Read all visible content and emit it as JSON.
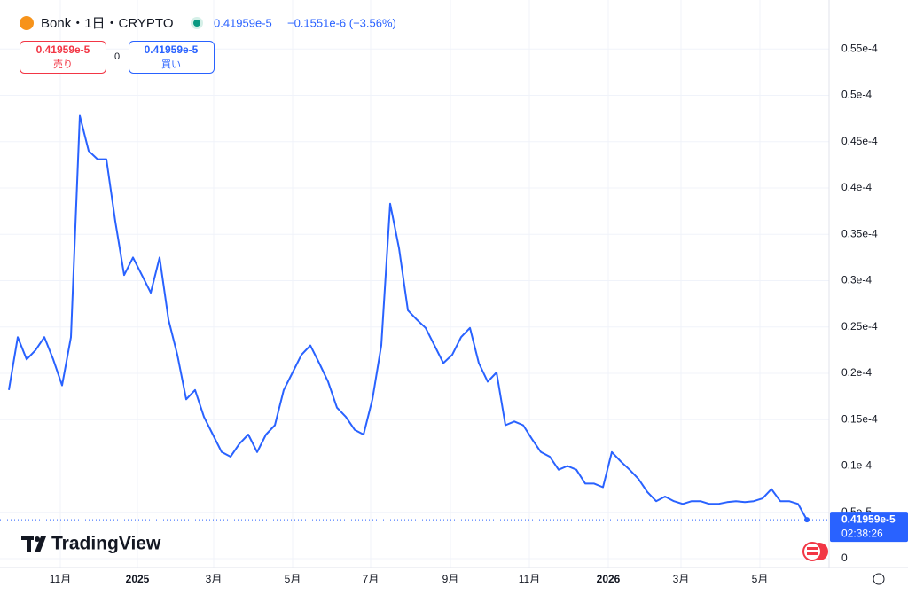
{
  "header": {
    "symbol": "Bonk・1日・CRYPTO",
    "price": "0.41959e-5",
    "change": "−0.1551e-6 (−3.56%)"
  },
  "trade": {
    "sell_price": "0.41959e-5",
    "sell_label": "売り",
    "spread": "0",
    "buy_price": "0.41959e-5",
    "buy_label": "買い"
  },
  "price_label": {
    "value": "0.41959e-5",
    "countdown": "02:38:26"
  },
  "logo": "TradingView",
  "chart_data": {
    "type": "line",
    "xlim": [
      -1,
      92.5
    ],
    "xticks": [
      {
        "value": 5.8,
        "label": "11月"
      },
      {
        "value": 14.5,
        "label": "2025"
      },
      {
        "value": 23.1,
        "label": "3月"
      },
      {
        "value": 32,
        "label": "5月"
      },
      {
        "value": 40.8,
        "label": "7月"
      },
      {
        "value": 49.8,
        "label": "9月"
      },
      {
        "value": 58.7,
        "label": "11月"
      },
      {
        "value": 67.6,
        "label": "2026"
      },
      {
        "value": 75.8,
        "label": "3月"
      },
      {
        "value": 84.7,
        "label": "5月"
      }
    ],
    "ylim": [
      0,
      6e-05
    ],
    "yticks": [
      0,
      {
        "value": 5e-06,
        "label": "0.5e-5"
      },
      {
        "value": 1e-05,
        "label": "0.1e-4"
      },
      {
        "value": 1.5e-05,
        "label": "0.15e-4"
      },
      {
        "value": 2e-05,
        "label": "0.2e-4"
      },
      {
        "value": 2.5e-05,
        "label": "0.25e-4"
      },
      {
        "value": 3e-05,
        "label": "0.3e-4"
      },
      {
        "value": 3.5e-05,
        "label": "0.35e-4"
      },
      {
        "value": 4e-05,
        "label": "0.4e-4"
      },
      {
        "value": 4.5e-05,
        "label": "0.45e-4"
      },
      {
        "value": 5e-05,
        "label": "0.5e-4"
      },
      {
        "value": 5.5e-05,
        "label": "0.55e-4"
      }
    ],
    "grid": true,
    "series": [
      {
        "color": "#2962ff",
        "values": [
          1.82e-05,
          2.39e-05,
          2.15e-05,
          2.25e-05,
          2.39e-05,
          2.15e-05,
          1.87e-05,
          2.39e-05,
          4.78e-05,
          4.4e-05,
          4.31e-05,
          4.31e-05,
          3.64e-05,
          3.06e-05,
          3.25e-05,
          3.06e-05,
          2.87e-05,
          3.25e-05,
          2.58e-05,
          2.2e-05,
          1.72e-05,
          1.82e-05,
          1.53e-05,
          1.34e-05,
          1.15e-05,
          1.1e-05,
          1.24e-05,
          1.34e-05,
          1.15e-05,
          1.34e-05,
          1.44e-05,
          1.82e-05,
          2.01e-05,
          2.2e-05,
          2.3e-05,
          2.11e-05,
          1.91e-05,
          1.63e-05,
          1.53e-05,
          1.39e-05,
          1.34e-05,
          1.72e-05,
          2.3e-05,
          3.83e-05,
          3.35e-05,
          2.68e-05,
          2.58e-05,
          2.49e-05,
          2.3e-05,
          2.11e-05,
          2.2e-05,
          2.39e-05,
          2.49e-05,
          2.11e-05,
          1.91e-05,
          2.01e-05,
          1.44e-05,
          1.48e-05,
          1.44e-05,
          1.29e-05,
          1.15e-05,
          1.1e-05,
          9.6e-06,
          1e-05,
          9.6e-06,
          8.1e-06,
          8.1e-06,
          7.7e-06,
          1.15e-05,
          1.05e-05,
          9.6e-06,
          8.6e-06,
          7.2e-06,
          6.2e-06,
          6.7e-06,
          6.2e-06,
          5.9e-06,
          6.2e-06,
          6.2e-06,
          5.9e-06,
          5.9e-06,
          6.1e-06,
          6.2e-06,
          6.1e-06,
          6.2e-06,
          6.5e-06,
          7.5e-06,
          6.2e-06,
          6.2e-06,
          5.9e-06,
          4.1959e-06
        ]
      }
    ]
  }
}
